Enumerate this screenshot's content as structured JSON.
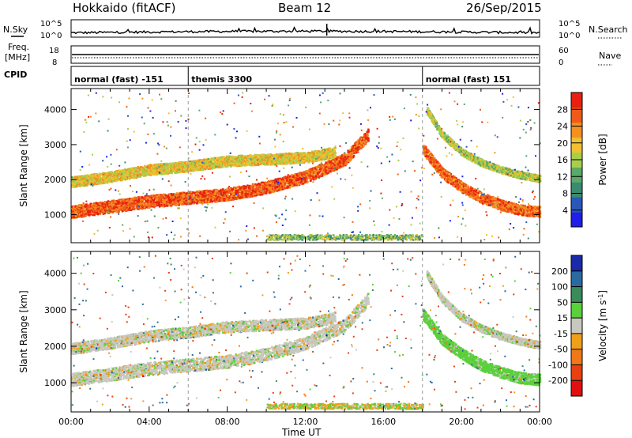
{
  "header": {
    "radar": "Hokkaido (fitACF)",
    "beam": "Beam 12",
    "date": "26/Sep/2015"
  },
  "status_panel": {
    "nsky_label": "N.Sky",
    "nsearch_label": "N.Search",
    "noise_ticks": [
      "10^5",
      "10^0"
    ],
    "freq_label": "Freq.",
    "freq_unit": "[MHz]",
    "freq_ticks": [
      "18",
      "8"
    ],
    "nave_label": "Nave",
    "nave_ticks": [
      "60",
      "0"
    ],
    "cpid_label": "CPID",
    "cpid_segments": [
      {
        "name": "normal (fast) -151",
        "start_ut": 0,
        "end_ut": 6
      },
      {
        "name": "themis 3300",
        "start_ut": 6,
        "end_ut": 18
      },
      {
        "name": "normal (fast) 151",
        "start_ut": 18,
        "end_ut": 24
      }
    ]
  },
  "chart_data": [
    {
      "type": "heatmap",
      "quantity": "Power",
      "ylabel": "Slant Range [km]",
      "xlabel": "Time UT",
      "xlim": [
        0,
        24
      ],
      "ylim": [
        200,
        4600
      ],
      "x_ticks": [
        "00:00",
        "04:00",
        "08:00",
        "12:00",
        "16:00",
        "20:00",
        "00:00"
      ],
      "y_ticks": [
        1000,
        2000,
        3000,
        4000
      ],
      "colorbar": {
        "label": "Power [dB]",
        "ticks": [
          4,
          8,
          12,
          16,
          20,
          24,
          28
        ],
        "range": [
          0,
          32
        ],
        "colors": [
          "#1f1fe6",
          "#2a58b8",
          "#3a8a6e",
          "#5aa86a",
          "#a7cf4a",
          "#f0c030",
          "#f39020",
          "#f05a18",
          "#e82010"
        ]
      },
      "scatter_bands": [
        {
          "t": [
            0,
            2,
            4,
            6,
            8,
            10,
            12,
            14,
            15.2
          ],
          "range": [
            1100,
            1250,
            1400,
            1500,
            1600,
            1800,
            2100,
            2600,
            3300
          ],
          "width": 350,
          "power": 27
        },
        {
          "t": [
            0,
            2,
            4,
            6,
            8,
            10,
            12,
            13.5
          ],
          "range": [
            1950,
            2100,
            2300,
            2400,
            2550,
            2600,
            2650,
            2800
          ],
          "width": 300,
          "power": 19
        },
        {
          "t": [
            18,
            19,
            20,
            21,
            22,
            23,
            24
          ],
          "range": [
            2900,
            2200,
            1800,
            1500,
            1300,
            1150,
            1100
          ],
          "width": 300,
          "power": 26
        },
        {
          "t": [
            18.2,
            19,
            20,
            21,
            22,
            23,
            24
          ],
          "range": [
            4000,
            3300,
            2800,
            2500,
            2300,
            2150,
            2050
          ],
          "width": 200,
          "power": 16
        }
      ]
    },
    {
      "type": "heatmap",
      "quantity": "Velocity",
      "ylabel": "Slant Range [km]",
      "xlabel": "Time UT",
      "xlim": [
        0,
        24
      ],
      "ylim": [
        200,
        4600
      ],
      "x_ticks": [
        "00:00",
        "04:00",
        "08:00",
        "12:00",
        "16:00",
        "20:00",
        "00:00"
      ],
      "y_ticks": [
        1000,
        2000,
        3000,
        4000
      ],
      "colorbar": {
        "label": "Velocity [m s",
        "label_sup": "-1",
        "label_end": "]",
        "ticks": [
          "200",
          "100",
          "50",
          "15",
          "-15",
          "-50",
          "-100",
          "-200"
        ],
        "colors": [
          "#1a2aa8",
          "#2a6aa0",
          "#3a8a5a",
          "#5ad03a",
          "#c8c8c0",
          "#f0a018",
          "#f07818",
          "#e84010",
          "#e01010"
        ]
      },
      "scatter_bands": [
        {
          "t": [
            0,
            2,
            4,
            6,
            8,
            10,
            12,
            14,
            15.2
          ],
          "range": [
            1100,
            1250,
            1400,
            1500,
            1600,
            1800,
            2100,
            2600,
            3300
          ],
          "width": 350,
          "velocity": 0
        },
        {
          "t": [
            0,
            2,
            4,
            6,
            8,
            10,
            12,
            13.5
          ],
          "range": [
            1950,
            2100,
            2300,
            2400,
            2550,
            2600,
            2650,
            2800
          ],
          "width": 300,
          "velocity": 0
        },
        {
          "t": [
            18,
            19,
            20,
            21,
            22,
            23,
            24
          ],
          "range": [
            2900,
            2200,
            1800,
            1500,
            1300,
            1150,
            1100
          ],
          "width": 300,
          "velocity": 30
        },
        {
          "t": [
            18.2,
            19,
            20,
            21,
            22,
            23,
            24
          ],
          "range": [
            4000,
            3300,
            2800,
            2500,
            2300,
            2150,
            2050
          ],
          "width": 200,
          "velocity": 0
        }
      ]
    }
  ]
}
